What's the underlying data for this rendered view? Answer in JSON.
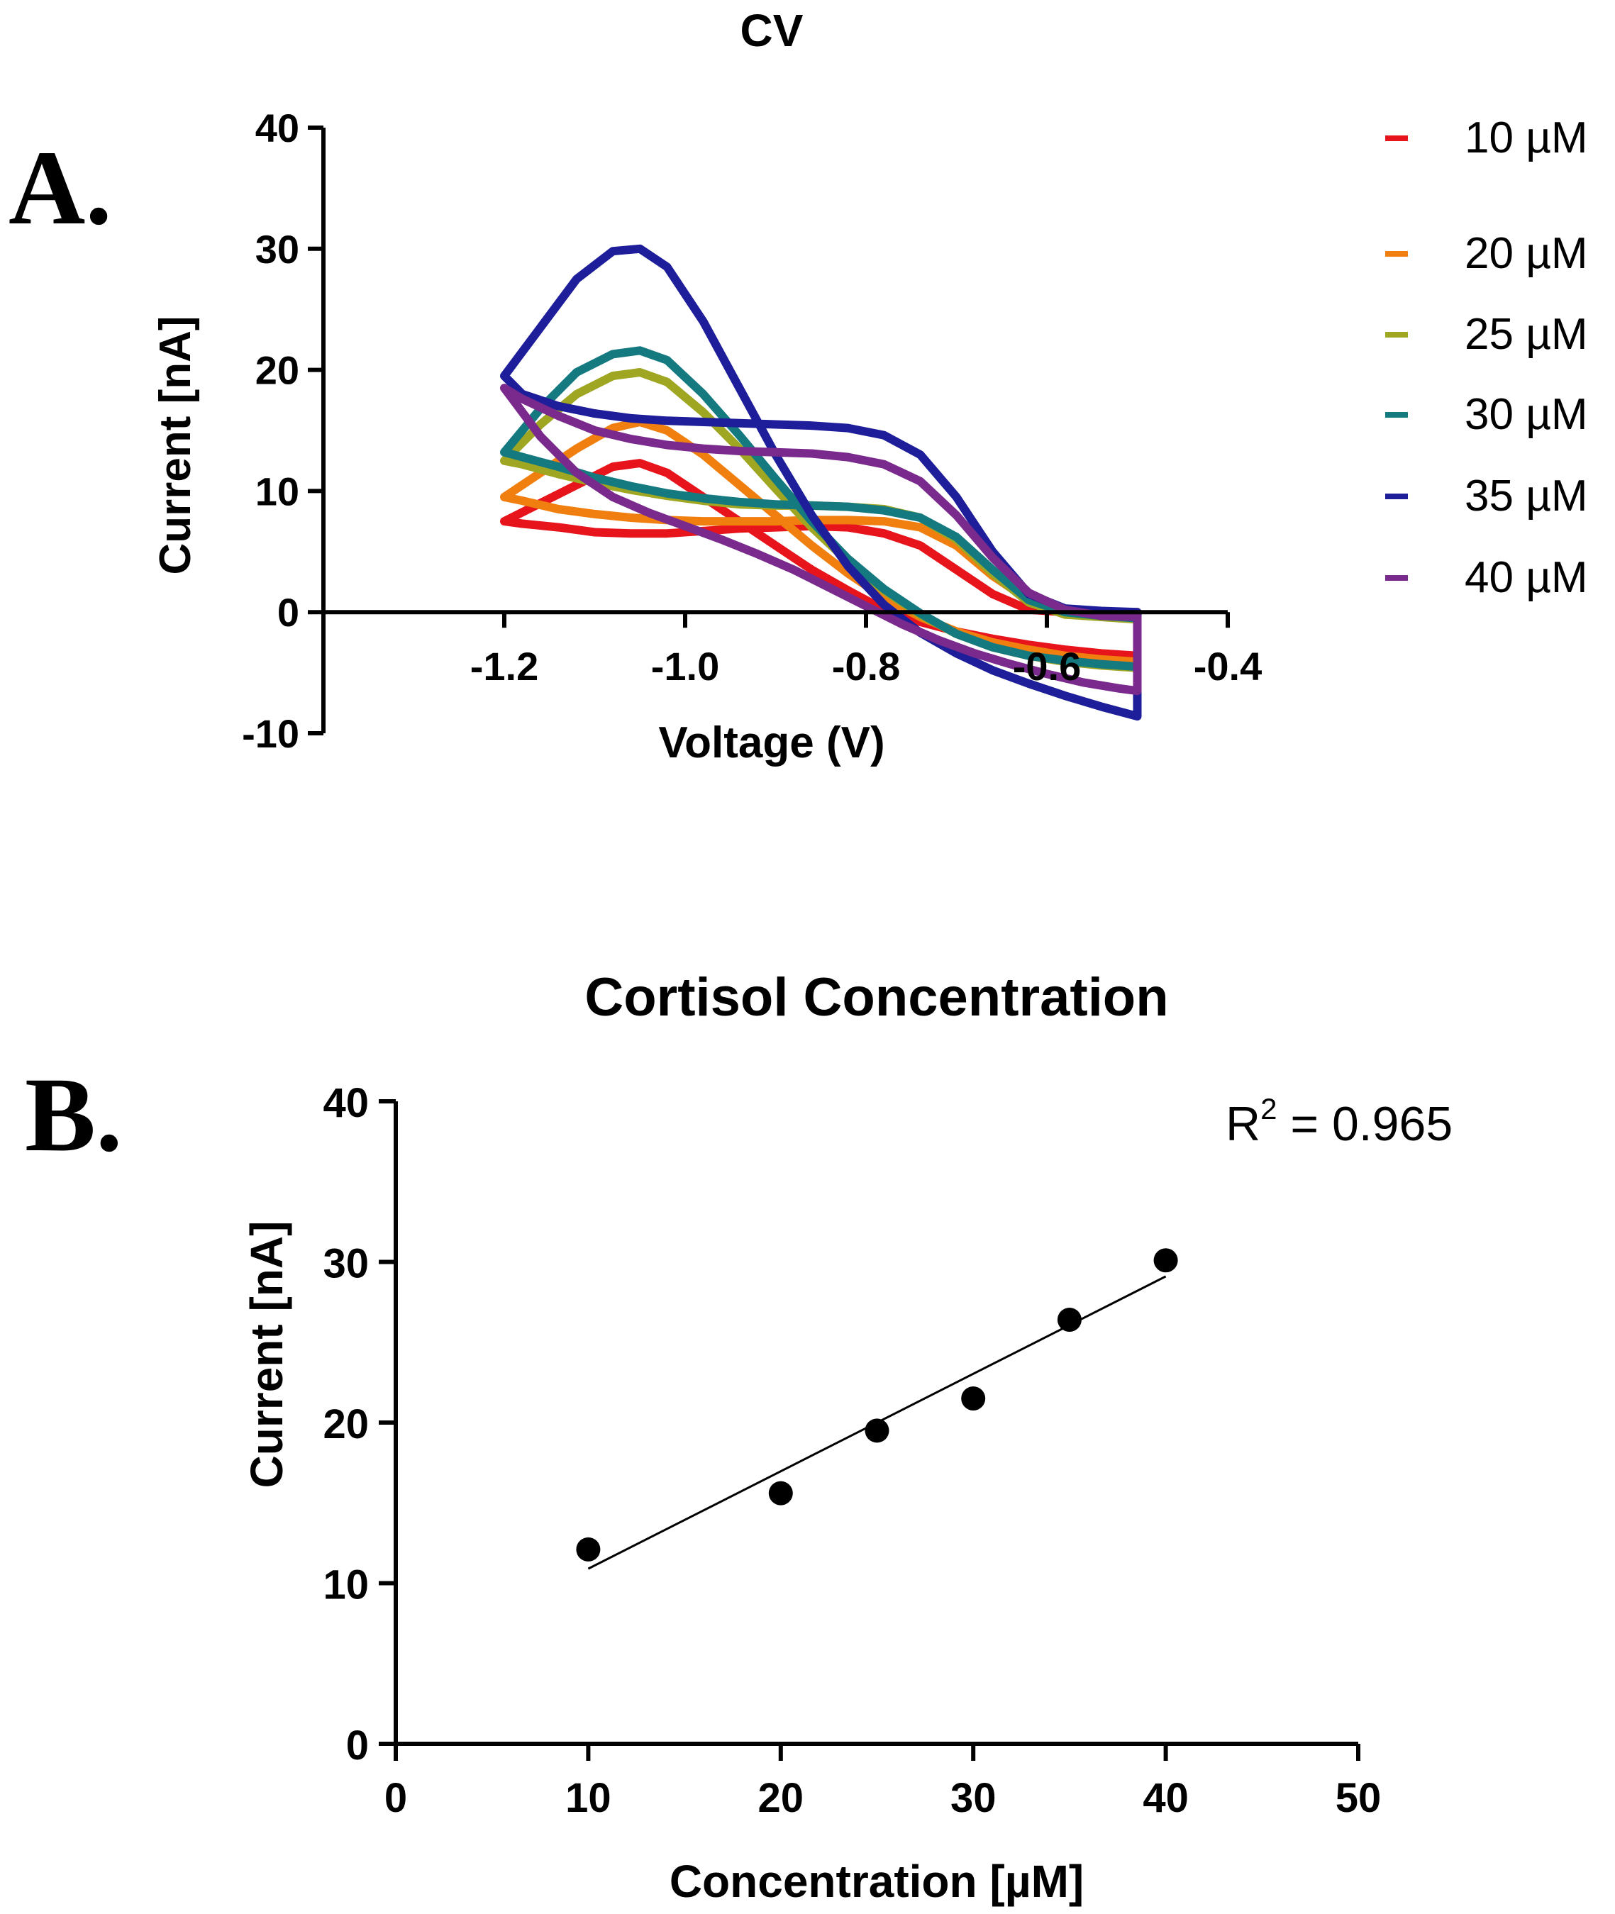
{
  "chart_data": [
    {
      "panel": "A.",
      "type": "line",
      "title": "CV",
      "xlabel": "Voltage (V)",
      "ylabel": "Current [nA]",
      "xlim": [
        -1.4,
        -0.4
      ],
      "ylim": [
        -10,
        40
      ],
      "xticks": [
        -1.2,
        -1.0,
        -0.8,
        -0.6,
        -0.4
      ],
      "xtick_labels": [
        "-1.2",
        "-1.0",
        "-0.8",
        "-0.6",
        "-0.4"
      ],
      "yticks": [
        -10,
        0,
        10,
        20,
        30,
        40
      ],
      "ytick_labels": [
        "-10",
        "0",
        "10",
        "20",
        "30",
        "40"
      ],
      "legend_position": "right",
      "series": [
        {
          "name": "10 µM",
          "color": "#e8141c",
          "x": [
            -1.2,
            -1.16,
            -1.12,
            -1.08,
            -1.05,
            -1.02,
            -0.98,
            -0.94,
            -0.9,
            -0.86,
            -0.82,
            -0.78,
            -0.74,
            -0.7,
            -0.66,
            -0.62,
            -0.58,
            -0.54,
            -0.5,
            -0.5,
            -0.54,
            -0.58,
            -0.62,
            -0.66,
            -0.7,
            -0.74,
            -0.78,
            -0.82,
            -0.86,
            -0.9,
            -0.94,
            -0.98,
            -1.02,
            -1.06,
            -1.1,
            -1.14,
            -1.18,
            -1.2
          ],
          "y": [
            7.5,
            9,
            10.5,
            12,
            12.3,
            11.5,
            9.5,
            7.5,
            5.5,
            3.5,
            1.8,
            0.2,
            -0.8,
            -1.6,
            -2.2,
            -2.7,
            -3.1,
            -3.4,
            -3.6,
            0,
            0,
            0,
            0.2,
            1.5,
            3.5,
            5.5,
            6.5,
            7,
            7.1,
            7,
            6.9,
            6.7,
            6.5,
            6.5,
            6.6,
            7,
            7.3,
            7.5
          ]
        },
        {
          "name": "20 µM",
          "color": "#f07f10",
          "x": [
            -1.2,
            -1.16,
            -1.12,
            -1.08,
            -1.05,
            -1.02,
            -0.98,
            -0.94,
            -0.9,
            -0.86,
            -0.82,
            -0.78,
            -0.74,
            -0.7,
            -0.66,
            -0.62,
            -0.58,
            -0.54,
            -0.5,
            -0.5,
            -0.54,
            -0.58,
            -0.62,
            -0.66,
            -0.7,
            -0.74,
            -0.78,
            -0.82,
            -0.86,
            -0.9,
            -0.94,
            -0.98,
            -1.02,
            -1.06,
            -1.1,
            -1.14,
            -1.18,
            -1.2
          ],
          "y": [
            9.5,
            11.5,
            13.5,
            15.2,
            15.7,
            15,
            13,
            10.5,
            8,
            5.5,
            3.2,
            1.2,
            -0.4,
            -1.6,
            -2.5,
            -3.1,
            -3.6,
            -3.9,
            -4.1,
            -0.5,
            -0.3,
            0,
            1,
            3,
            5.5,
            7,
            7.5,
            7.6,
            7.6,
            7.5,
            7.5,
            7.5,
            7.6,
            7.8,
            8.1,
            8.5,
            9.2,
            9.5
          ]
        },
        {
          "name": "25 µM",
          "color": "#9ea622",
          "x": [
            -1.2,
            -1.16,
            -1.12,
            -1.08,
            -1.05,
            -1.02,
            -0.98,
            -0.94,
            -0.9,
            -0.86,
            -0.82,
            -0.78,
            -0.74,
            -0.7,
            -0.66,
            -0.62,
            -0.58,
            -0.54,
            -0.5,
            -0.5,
            -0.54,
            -0.58,
            -0.62,
            -0.66,
            -0.7,
            -0.74,
            -0.78,
            -0.82,
            -0.86,
            -0.9,
            -0.94,
            -0.98,
            -1.02,
            -1.06,
            -1.1,
            -1.14,
            -1.18,
            -1.2
          ],
          "y": [
            12.5,
            15.5,
            18,
            19.5,
            19.8,
            19,
            16.5,
            13.5,
            10.2,
            7,
            4.2,
            1.8,
            -0.2,
            -1.8,
            -2.9,
            -3.6,
            -4.1,
            -4.4,
            -4.6,
            -0.6,
            -0.4,
            -0.2,
            0.8,
            3.2,
            6,
            7.8,
            8.5,
            8.7,
            8.8,
            8.8,
            8.9,
            9.2,
            9.6,
            10.1,
            10.7,
            11.4,
            12.2,
            12.5
          ]
        },
        {
          "name": "30 µM",
          "color": "#157a80",
          "x": [
            -1.2,
            -1.16,
            -1.12,
            -1.08,
            -1.05,
            -1.02,
            -0.98,
            -0.94,
            -0.9,
            -0.86,
            -0.82,
            -0.78,
            -0.74,
            -0.7,
            -0.66,
            -0.62,
            -0.58,
            -0.54,
            -0.5,
            -0.5,
            -0.54,
            -0.58,
            -0.62,
            -0.66,
            -0.7,
            -0.74,
            -0.78,
            -0.82,
            -0.86,
            -0.9,
            -0.94,
            -0.98,
            -1.02,
            -1.06,
            -1.1,
            -1.14,
            -1.18,
            -1.2
          ],
          "y": [
            13.2,
            16.8,
            19.8,
            21.3,
            21.6,
            20.8,
            18,
            14.6,
            11,
            7.5,
            4.4,
            1.9,
            -0.1,
            -1.8,
            -2.9,
            -3.6,
            -4,
            -4.3,
            -4.5,
            -0.5,
            -0.3,
            0,
            1,
            3.5,
            6.2,
            7.8,
            8.4,
            8.7,
            8.8,
            8.9,
            9.1,
            9.4,
            9.8,
            10.4,
            11.1,
            12,
            12.8,
            13.2
          ]
        },
        {
          "name": "35 µM",
          "color": "#1e1e9a",
          "x": [
            -1.2,
            -1.16,
            -1.12,
            -1.08,
            -1.05,
            -1.02,
            -0.98,
            -0.94,
            -0.9,
            -0.86,
            -0.82,
            -0.78,
            -0.74,
            -0.7,
            -0.66,
            -0.62,
            -0.58,
            -0.54,
            -0.5,
            -0.5,
            -0.54,
            -0.58,
            -0.62,
            -0.66,
            -0.7,
            -0.74,
            -0.78,
            -0.82,
            -0.86,
            -0.9,
            -0.94,
            -0.98,
            -1.02,
            -1.06,
            -1.1,
            -1.14,
            -1.18,
            -1.2
          ],
          "y": [
            19.5,
            23.5,
            27.5,
            29.8,
            30,
            28.5,
            24,
            18.5,
            13,
            8,
            3.8,
            0.6,
            -1.7,
            -3.4,
            -4.8,
            -5.9,
            -6.9,
            -7.8,
            -8.6,
            0,
            0.1,
            0.3,
            1.5,
            5,
            9.5,
            13,
            14.6,
            15.2,
            15.4,
            15.5,
            15.6,
            15.7,
            15.8,
            16,
            16.4,
            17,
            18,
            19.5
          ]
        },
        {
          "name": "40 µM",
          "color": "#7a2a8c",
          "x": [
            -1.2,
            -1.16,
            -1.12,
            -1.08,
            -1.04,
            -1.0,
            -0.96,
            -0.92,
            -0.88,
            -0.84,
            -0.8,
            -0.76,
            -0.72,
            -0.68,
            -0.64,
            -0.6,
            -0.56,
            -0.52,
            -0.5,
            -0.5,
            -0.54,
            -0.58,
            -0.62,
            -0.66,
            -0.7,
            -0.74,
            -0.78,
            -0.82,
            -0.86,
            -0.9,
            -0.94,
            -0.98,
            -1.02,
            -1.06,
            -1.1,
            -1.14,
            -1.18,
            -1.2
          ],
          "y": [
            18.5,
            14.5,
            11.5,
            9.5,
            8.2,
            7.1,
            6,
            4.8,
            3.5,
            2,
            0.5,
            -1,
            -2.3,
            -3.4,
            -4.3,
            -5.1,
            -5.8,
            -6.3,
            -6.5,
            -0.4,
            -0.3,
            0.2,
            1.6,
            4.5,
            8,
            10.8,
            12.2,
            12.8,
            13.1,
            13.2,
            13.3,
            13.5,
            13.8,
            14.3,
            15,
            16.2,
            17.6,
            18.5
          ]
        }
      ]
    },
    {
      "panel": "B.",
      "type": "scatter",
      "title": "Cortisol Concentration",
      "xlabel": "Concentration [µM]",
      "ylabel": "Current [nA]",
      "xlim": [
        0,
        50
      ],
      "ylim": [
        0,
        40
      ],
      "xticks": [
        0,
        10,
        20,
        30,
        40,
        50
      ],
      "xtick_labels": [
        "0",
        "10",
        "20",
        "30",
        "40",
        "50"
      ],
      "yticks": [
        0,
        10,
        20,
        30,
        40
      ],
      "ytick_labels": [
        "0",
        "10",
        "20",
        "30",
        "40"
      ],
      "annotation": {
        "prefix": "R",
        "superscript": "2",
        "rest": " = 0.965"
      },
      "points": {
        "x": [
          10,
          20,
          25,
          30,
          35,
          40
        ],
        "y": [
          12.1,
          15.6,
          19.5,
          21.5,
          26.4,
          30.1
        ]
      },
      "fit_line": {
        "x": [
          10,
          40
        ],
        "y": [
          10.9,
          29.1
        ]
      }
    }
  ]
}
